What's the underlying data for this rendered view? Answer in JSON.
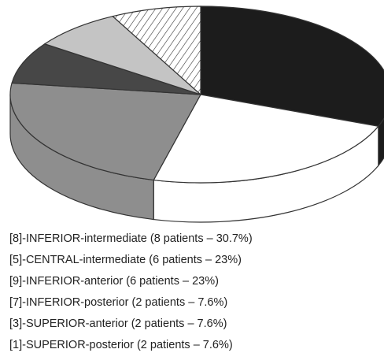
{
  "chart_data": {
    "type": "pie",
    "categories": [
      "[8]-INFERIOR-intermediate (8 patients – 30.7%)",
      "[5]-CENTRAL-intermediate (6 patients – 23%)",
      "[9]-INFERIOR-anterior (6 patients – 23%)",
      "[7]-INFERIOR-posterior (2 patients – 7.6%)",
      "[3]-SUPERIOR-anterior (2 patients – 7.6%)",
      "[1]-SUPERIOR-posterior (2 patients – 7.6%)"
    ],
    "values": [
      30.7,
      23,
      23,
      7.6,
      7.6,
      7.6
    ],
    "colors": [
      "#1c1c1c",
      "#ffffff",
      "#8e8e8e",
      "#474747",
      "#c4c4c4",
      "#ffffff"
    ],
    "hatched": [
      false,
      false,
      false,
      false,
      false,
      true
    ]
  }
}
